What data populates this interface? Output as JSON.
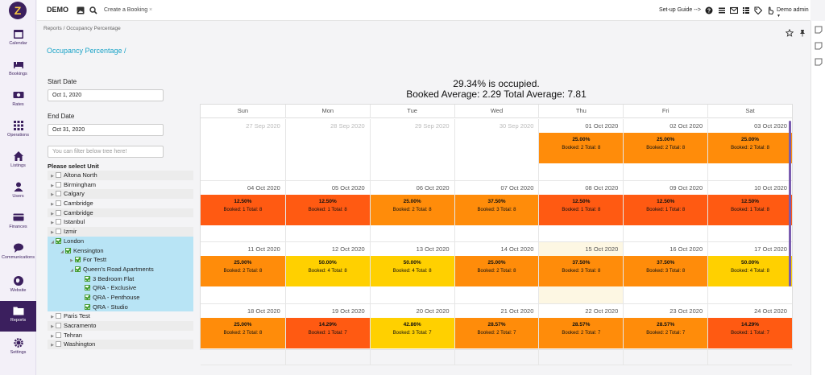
{
  "sidebar": {
    "logo": "Z",
    "items": [
      {
        "label": "Calendar",
        "icon": "calendar-icon"
      },
      {
        "label": "Bookings",
        "icon": "bed-icon"
      },
      {
        "label": "Rates",
        "icon": "money-icon"
      },
      {
        "label": "Operations",
        "icon": "grid-icon"
      },
      {
        "label": "Listings",
        "icon": "home-icon"
      },
      {
        "label": "Users",
        "icon": "user-icon"
      },
      {
        "label": "Finances",
        "icon": "card-icon"
      },
      {
        "label": "Communications",
        "icon": "chat-icon"
      },
      {
        "label": "Website",
        "icon": "globe-icon"
      },
      {
        "label": "Reports",
        "icon": "folder-icon"
      },
      {
        "label": "Settings",
        "icon": "gear-icon"
      }
    ],
    "active": "Reports"
  },
  "topbar": {
    "brand": "DEMO",
    "tab_label": "Create a Booking",
    "tab_close": "×",
    "setup": "Set-up Guide -->",
    "user": "Demo admin"
  },
  "breadcrumb": {
    "root": "Reports",
    "sep": "/",
    "current": "Occupancy Percentage"
  },
  "page_title": "Occupancy Percentage /",
  "filters": {
    "start_label": "Start Date",
    "start_value": "Oct 1, 2020",
    "end_label": "End Date",
    "end_value": "Oct 31, 2020",
    "tree_filter_placeholder": "You can filter below tree here!",
    "unit_label": "Please select Unit"
  },
  "tree": [
    {
      "label": "Altona North",
      "level": 0,
      "arrow": "▶",
      "checked": false,
      "selected": false
    },
    {
      "label": "Birmingham",
      "level": 0,
      "arrow": "▶",
      "checked": false,
      "selected": false
    },
    {
      "label": "Calgary",
      "level": 0,
      "arrow": "▶",
      "checked": false,
      "selected": false
    },
    {
      "label": "Cambridge",
      "level": 0,
      "arrow": "▶",
      "checked": false,
      "selected": false
    },
    {
      "label": "Cambridge",
      "level": 0,
      "arrow": "▶",
      "checked": false,
      "selected": false
    },
    {
      "label": "Istanbul",
      "level": 0,
      "arrow": "▶",
      "checked": false,
      "selected": false
    },
    {
      "label": "Izmir",
      "level": 0,
      "arrow": "▶",
      "checked": false,
      "selected": false
    },
    {
      "label": "London",
      "level": 0,
      "arrow": "◢",
      "checked": true,
      "selected": true
    },
    {
      "label": "Kensington",
      "level": 1,
      "arrow": "◢",
      "checked": true,
      "selected": true
    },
    {
      "label": "For Testt",
      "level": 2,
      "arrow": "▶",
      "checked": true,
      "selected": true
    },
    {
      "label": "Queen's Road Apartments",
      "level": 2,
      "arrow": "◢",
      "checked": true,
      "selected": true
    },
    {
      "label": "3 Bedroom Flat",
      "level": 3,
      "arrow": "",
      "checked": true,
      "selected": true
    },
    {
      "label": "QRA - Exclusive",
      "level": 3,
      "arrow": "",
      "checked": true,
      "selected": true
    },
    {
      "label": "QRA - Penthouse",
      "level": 3,
      "arrow": "",
      "checked": true,
      "selected": true
    },
    {
      "label": "QRA - Studio",
      "level": 3,
      "arrow": "",
      "checked": true,
      "selected": true
    },
    {
      "label": "Paris Test",
      "level": 0,
      "arrow": "▶",
      "checked": false,
      "selected": false
    },
    {
      "label": "Sacramento",
      "level": 0,
      "arrow": "▶",
      "checked": false,
      "selected": false
    },
    {
      "label": "Tehran",
      "level": 0,
      "arrow": "▶",
      "checked": false,
      "selected": false
    },
    {
      "label": "Washington",
      "level": 0,
      "arrow": "▶",
      "checked": false,
      "selected": false
    }
  ],
  "summary": {
    "line1": "29.34% is occupied.",
    "line2": "Booked Average: 2.29 Total Average: 7.81"
  },
  "calendar": {
    "weekdays": [
      "Sun",
      "Mon",
      "Tue",
      "Wed",
      "Thu",
      "Fri",
      "Sat"
    ],
    "colors": {
      "low": "#ff5a12",
      "mid": "#ff8c0a",
      "high": "#ffd000"
    },
    "weeks": [
      [
        {
          "date": "27 Sep 2020",
          "out": true
        },
        {
          "date": "28 Sep 2020",
          "out": true
        },
        {
          "date": "29 Sep 2020",
          "out": true
        },
        {
          "date": "30 Sep 2020",
          "out": true
        },
        {
          "date": "01 Oct 2020",
          "pct": "25.00%",
          "value": 25.0,
          "text": "Booked: 2 Total: 8"
        },
        {
          "date": "02 Oct 2020",
          "pct": "25.00%",
          "value": 25.0,
          "text": "Booked: 2 Total: 8"
        },
        {
          "date": "03 Oct 2020",
          "pct": "25.00%",
          "value": 25.0,
          "text": "Booked: 2 Total: 8"
        }
      ],
      [
        {
          "date": "04 Oct 2020",
          "pct": "12.50%",
          "value": 12.5,
          "text": "Booked: 1 Total: 8"
        },
        {
          "date": "05 Oct 2020",
          "pct": "12.50%",
          "value": 12.5,
          "text": "Booked: 1 Total: 8"
        },
        {
          "date": "06 Oct 2020",
          "pct": "25.00%",
          "value": 25.0,
          "text": "Booked: 2 Total: 8"
        },
        {
          "date": "07 Oct 2020",
          "pct": "37.50%",
          "value": 37.5,
          "text": "Booked: 3 Total: 8"
        },
        {
          "date": "08 Oct 2020",
          "pct": "12.50%",
          "value": 12.5,
          "text": "Booked: 1 Total: 8"
        },
        {
          "date": "09 Oct 2020",
          "pct": "12.50%",
          "value": 12.5,
          "text": "Booked: 1 Total: 8"
        },
        {
          "date": "10 Oct 2020",
          "pct": "12.50%",
          "value": 12.5,
          "text": "Booked: 1 Total: 8"
        }
      ],
      [
        {
          "date": "11 Oct 2020",
          "pct": "25.00%",
          "value": 25.0,
          "text": "Booked: 2 Total: 8"
        },
        {
          "date": "12 Oct 2020",
          "pct": "50.00%",
          "value": 50.0,
          "text": "Booked: 4 Total: 8"
        },
        {
          "date": "13 Oct 2020",
          "pct": "50.00%",
          "value": 50.0,
          "text": "Booked: 4 Total: 8"
        },
        {
          "date": "14 Oct 2020",
          "pct": "25.00%",
          "value": 25.0,
          "text": "Booked: 2 Total: 8"
        },
        {
          "date": "15 Oct 2020",
          "pct": "37.50%",
          "value": 37.5,
          "text": "Booked: 3 Total: 8",
          "today": true
        },
        {
          "date": "16 Oct 2020",
          "pct": "37.50%",
          "value": 37.5,
          "text": "Booked: 3 Total: 8"
        },
        {
          "date": "17 Oct 2020",
          "pct": "50.00%",
          "value": 50.0,
          "text": "Booked: 4 Total: 8"
        }
      ],
      [
        {
          "date": "18 Oct 2020",
          "pct": "25.00%",
          "value": 25.0,
          "text": "Booked: 2 Total: 8"
        },
        {
          "date": "19 Oct 2020",
          "pct": "14.29%",
          "value": 14.29,
          "text": "Booked: 1 Total: 7"
        },
        {
          "date": "20 Oct 2020",
          "pct": "42.86%",
          "value": 42.86,
          "text": "Booked: 3 Total: 7"
        },
        {
          "date": "21 Oct 2020",
          "pct": "28.57%",
          "value": 28.57,
          "text": "Booked: 2 Total: 7"
        },
        {
          "date": "22 Oct 2020",
          "pct": "28.57%",
          "value": 28.57,
          "text": "Booked: 2 Total: 7"
        },
        {
          "date": "23 Oct 2020",
          "pct": "28.57%",
          "value": 28.57,
          "text": "Booked: 2 Total: 7"
        },
        {
          "date": "24 Oct 2020",
          "pct": "14.29%",
          "value": 14.29,
          "text": "Booked: 1 Total: 7"
        }
      ]
    ]
  }
}
